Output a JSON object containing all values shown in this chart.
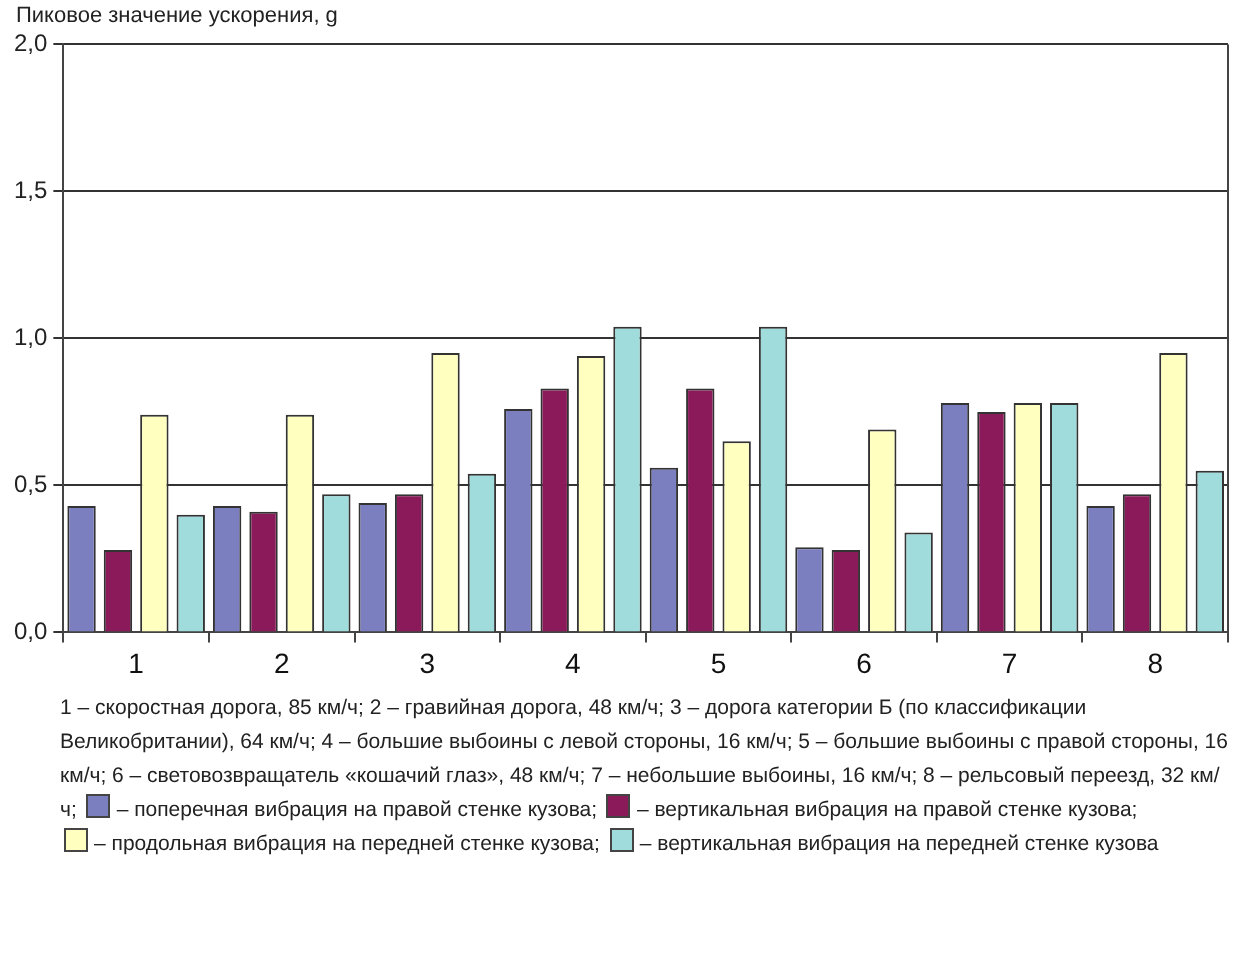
{
  "chart_data": {
    "type": "bar",
    "ylabel": "Пиковое значение ускорения, g",
    "categories": [
      "1",
      "2",
      "3",
      "4",
      "5",
      "6",
      "7",
      "8"
    ],
    "series": [
      {
        "name": "– поперечная вибрация на правой стенке кузова;",
        "color": "#7b7fbf",
        "values": [
          0.43,
          0.43,
          0.44,
          0.76,
          0.56,
          0.29,
          0.78,
          0.43
        ]
      },
      {
        "name": "– вертикальная вибрация на правой стенке кузова;",
        "color": "#8b1a5a",
        "values": [
          0.28,
          0.41,
          0.47,
          0.83,
          0.83,
          0.28,
          0.75,
          0.47
        ]
      },
      {
        "name": "– продольная вибрация на передней стенке кузова;",
        "color": "#ffffc0",
        "values": [
          0.74,
          0.74,
          0.95,
          0.94,
          0.65,
          0.69,
          0.78,
          0.95
        ]
      },
      {
        "name": "– вертикальная вибрация на передней стенке кузова",
        "color": "#a0dcdc",
        "values": [
          0.4,
          0.47,
          0.54,
          1.04,
          1.04,
          0.34,
          0.78,
          0.55
        ]
      }
    ],
    "ylim": [
      0,
      2
    ],
    "yticks": [
      {
        "value": 0,
        "label": "0,0"
      },
      {
        "value": 0.5,
        "label": "0,5"
      },
      {
        "value": 1,
        "label": "1,0"
      },
      {
        "value": 1.5,
        "label": "1,5"
      },
      {
        "value": 2,
        "label": "2,0"
      }
    ],
    "grid": "y",
    "legend": "bottom",
    "annotations": [
      "1 – скоростная дорога, 85 км/ч; 2 – гравийная дорога, 48 км/ч; 3 – дорога категории Б (по классификации Великобритании), 64 км/ч; 4 – большие выбоины с левой стороны, 16 км/ч; 5 – большие выбоины с правой стороны, 16 км/ч; 6 – световозвращатель «кошачий глаз», 48 км/ч; 7 – небольшие выбоины, 16 км/ч; 8 – рельсовый переезд, 32 км/ч;"
    ]
  }
}
